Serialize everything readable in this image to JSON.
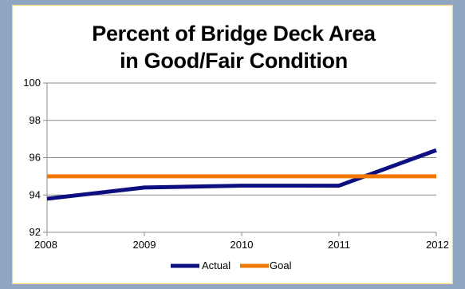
{
  "chart_data": {
    "type": "line",
    "title_lines": [
      "Percent of Bridge Deck Area",
      "in Good/Fair Condition"
    ],
    "x": [
      "2008",
      "2009",
      "2010",
      "2011",
      "2012"
    ],
    "ylim": [
      92,
      100
    ],
    "y_ticks": [
      "92",
      "94",
      "96",
      "98",
      "100"
    ],
    "grid": true,
    "legend_placement": "bottom",
    "series": [
      {
        "name": "Actual",
        "color": "#0d0f80",
        "values": [
          93.8,
          94.4,
          94.5,
          94.5,
          96.4
        ]
      },
      {
        "name": "Goal",
        "color": "#f07800",
        "values": [
          95,
          95,
          95,
          95,
          95
        ]
      }
    ]
  }
}
